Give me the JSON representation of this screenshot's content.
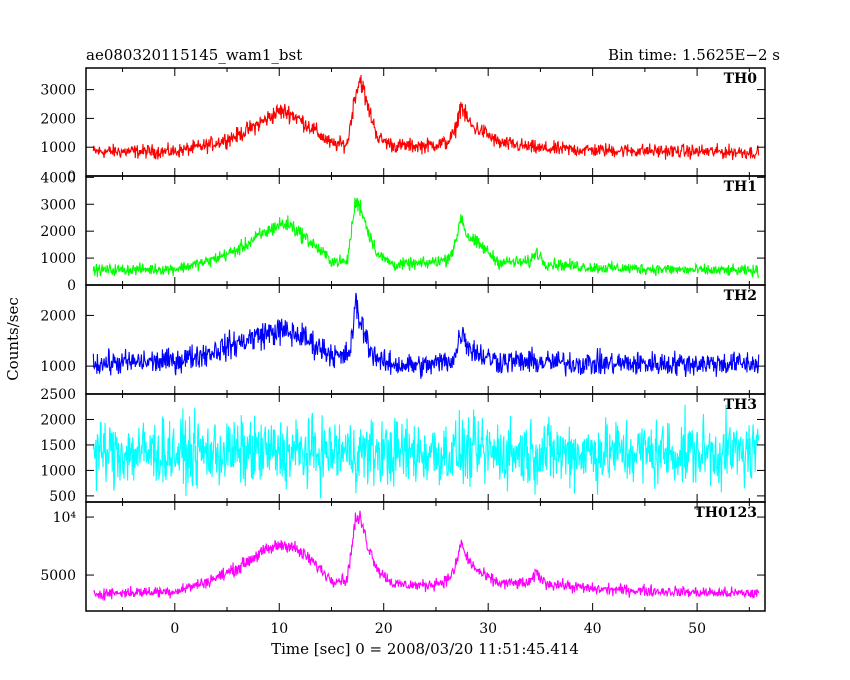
{
  "chart_data": {
    "type": "line",
    "title_left": "ae080320115145_wam1_bst",
    "title_right": "Bin time: 1.5625E−2 s",
    "xlabel": "Time [sec] 0 = 2008/03/20 11:51:45.414",
    "ylabel": "Counts/sec",
    "xlim": [
      -8.5,
      56.5
    ],
    "x_ticks": [
      0,
      10,
      20,
      30,
      40,
      50
    ],
    "x_tick_labels": [
      "0",
      "10",
      "20",
      "30",
      "40",
      "50"
    ],
    "x_data_range": [
      -7.8,
      55.9
    ],
    "panels": [
      {
        "name": "TH0",
        "color": "#ff0000",
        "ylim": [
          0,
          3750
        ],
        "y_ticks": [
          0,
          1000,
          2000,
          3000
        ],
        "y_tick_labels": [
          "0",
          "1000",
          "2000",
          "3000"
        ],
        "profile": [
          [
            -7.8,
            850
          ],
          [
            0,
            850
          ],
          [
            3,
            1050
          ],
          [
            6,
            1400
          ],
          [
            8,
            1800
          ],
          [
            10,
            2250
          ],
          [
            11,
            2200
          ],
          [
            13,
            1700
          ],
          [
            15,
            1100
          ],
          [
            16.5,
            1100
          ],
          [
            17.3,
            2900
          ],
          [
            17.8,
            3400
          ],
          [
            18.3,
            2600
          ],
          [
            19.5,
            1300
          ],
          [
            21,
            1050
          ],
          [
            24,
            1050
          ],
          [
            26,
            1150
          ],
          [
            26.8,
            1500
          ],
          [
            27.4,
            2500
          ],
          [
            27.8,
            2100
          ],
          [
            28.5,
            1700
          ],
          [
            29.5,
            1550
          ],
          [
            31,
            1150
          ],
          [
            35,
            950
          ],
          [
            40,
            900
          ],
          [
            50,
            850
          ],
          [
            55.9,
            820
          ]
        ],
        "noise_amp": 520,
        "min_value": 150
      },
      {
        "name": "TH1",
        "color": "#00ff00",
        "ylim": [
          0,
          4050
        ],
        "y_ticks": [
          0,
          1000,
          2000,
          3000,
          4000
        ],
        "y_tick_labels": [
          "0",
          "1000",
          "2000",
          "3000",
          "4000"
        ],
        "profile": [
          [
            -7.8,
            550
          ],
          [
            0,
            600
          ],
          [
            3,
            850
          ],
          [
            6,
            1300
          ],
          [
            8,
            1800
          ],
          [
            10,
            2250
          ],
          [
            11,
            2250
          ],
          [
            13,
            1600
          ],
          [
            15,
            900
          ],
          [
            16.5,
            850
          ],
          [
            17.3,
            3100
          ],
          [
            17.8,
            2900
          ],
          [
            18.5,
            2000
          ],
          [
            19.5,
            1100
          ],
          [
            21,
            750
          ],
          [
            24,
            800
          ],
          [
            26,
            950
          ],
          [
            26.8,
            1400
          ],
          [
            27.4,
            2600
          ],
          [
            27.9,
            1900
          ],
          [
            28.5,
            1650
          ],
          [
            29.5,
            1400
          ],
          [
            31,
            850
          ],
          [
            34,
            850
          ],
          [
            34.6,
            1250
          ],
          [
            35.5,
            800
          ],
          [
            40,
            650
          ],
          [
            50,
            550
          ],
          [
            55.9,
            520
          ]
        ],
        "noise_amp": 480,
        "min_value": 50
      },
      {
        "name": "TH2",
        "color": "#0000ff",
        "ylim": [
          450,
          2600
        ],
        "y_ticks": [
          1000,
          2000
        ],
        "y_tick_labels": [
          "1000",
          "2000"
        ],
        "profile": [
          [
            -7.8,
            1050
          ],
          [
            0,
            1100
          ],
          [
            3,
            1250
          ],
          [
            6,
            1450
          ],
          [
            8,
            1600
          ],
          [
            10,
            1700
          ],
          [
            12,
            1600
          ],
          [
            14,
            1350
          ],
          [
            16,
            1150
          ],
          [
            16.8,
            1300
          ],
          [
            17.3,
            2200
          ],
          [
            17.9,
            1800
          ],
          [
            18.8,
            1300
          ],
          [
            20,
            1050
          ],
          [
            24,
            1000
          ],
          [
            26,
            1100
          ],
          [
            26.8,
            1150
          ],
          [
            27.4,
            1700
          ],
          [
            28.3,
            1350
          ],
          [
            29.5,
            1200
          ],
          [
            31,
            1100
          ],
          [
            40,
            1050
          ],
          [
            50,
            1050
          ],
          [
            55.9,
            1050
          ]
        ],
        "noise_amp": 430,
        "min_value": 620
      },
      {
        "name": "TH3",
        "color": "#00ffff",
        "ylim": [
          380,
          2500
        ],
        "y_ticks": [
          500,
          1000,
          1500,
          2000,
          2500
        ],
        "y_tick_labels": [
          "500",
          "1000",
          "1500",
          "2000",
          "2500"
        ],
        "profile": [
          [
            -7.8,
            1350
          ],
          [
            55.9,
            1350
          ]
        ],
        "noise_amp": 880,
        "min_value": 420
      },
      {
        "name": "TH0123",
        "color": "#ff00ff",
        "ylim": [
          1900,
          11300
        ],
        "y_ticks": [
          5000,
          10000
        ],
        "y_tick_labels": [
          "5000",
          "10⁴"
        ],
        "profile": [
          [
            -7.8,
            3400
          ],
          [
            0,
            3600
          ],
          [
            3,
            4400
          ],
          [
            6,
            5600
          ],
          [
            8,
            6800
          ],
          [
            10,
            7600
          ],
          [
            11,
            7600
          ],
          [
            13,
            6300
          ],
          [
            15,
            4600
          ],
          [
            16.5,
            4600
          ],
          [
            17.3,
            9800
          ],
          [
            17.8,
            9800
          ],
          [
            18.5,
            7500
          ],
          [
            19.5,
            5400
          ],
          [
            21,
            4200
          ],
          [
            24,
            4100
          ],
          [
            26,
            4500
          ],
          [
            26.8,
            5400
          ],
          [
            27.4,
            7800
          ],
          [
            27.9,
            6600
          ],
          [
            28.5,
            5800
          ],
          [
            29.5,
            5000
          ],
          [
            31,
            4300
          ],
          [
            34,
            4300
          ],
          [
            34.6,
            5200
          ],
          [
            35.5,
            4300
          ],
          [
            40,
            3800
          ],
          [
            50,
            3500
          ],
          [
            55.9,
            3400
          ]
        ],
        "noise_amp": 950,
        "min_value": 2050
      }
    ]
  }
}
